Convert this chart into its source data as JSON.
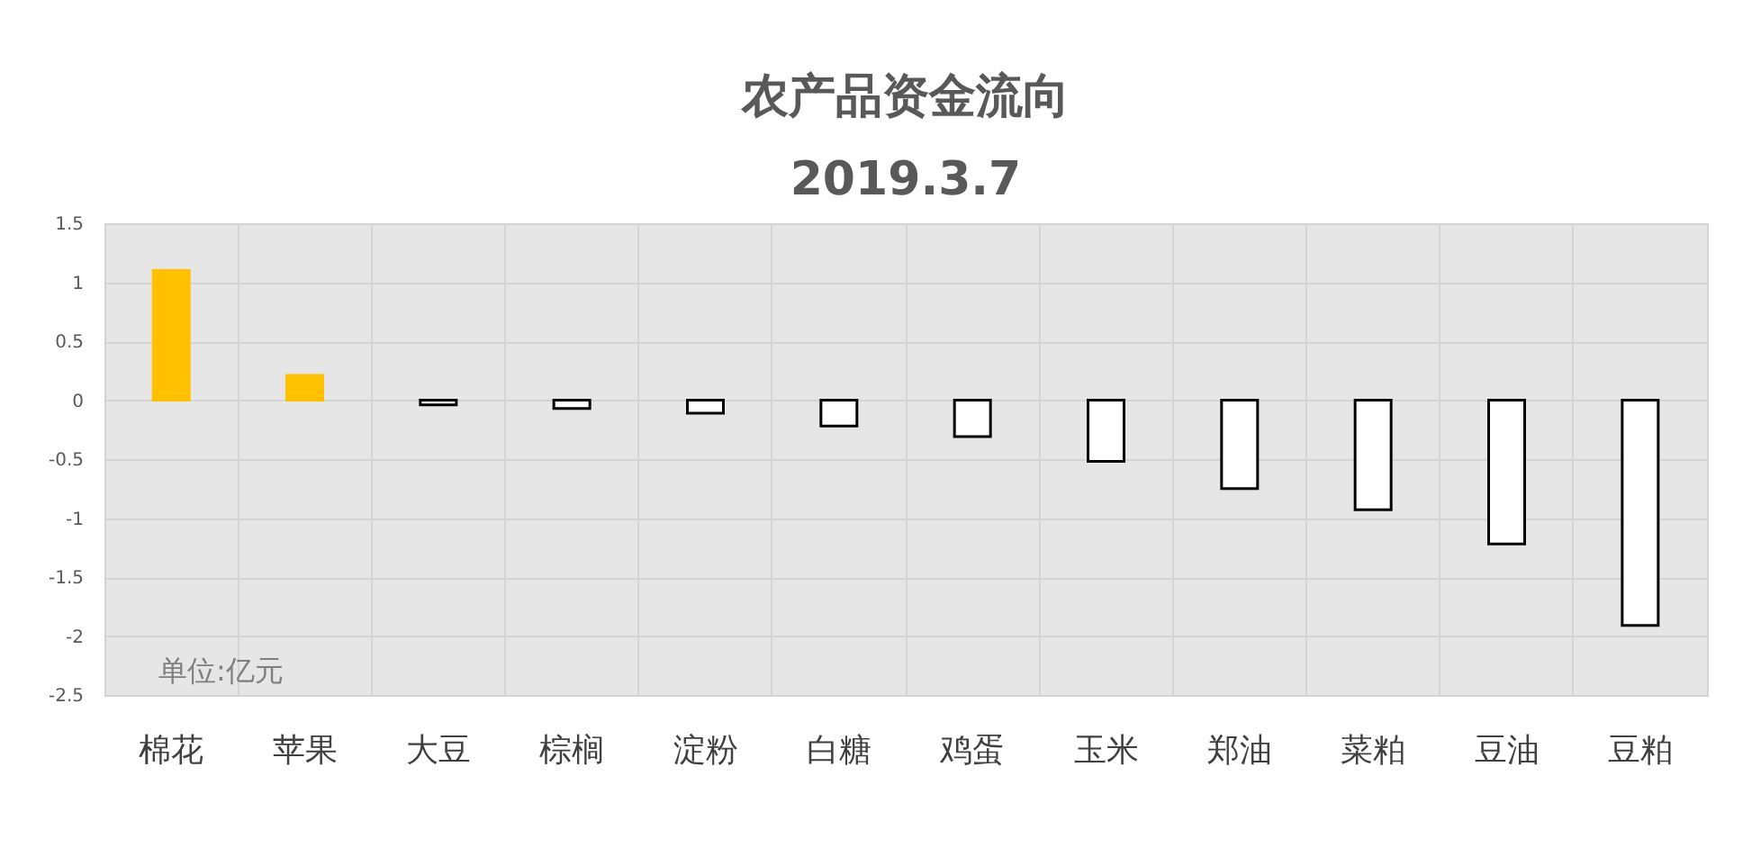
{
  "chart_data": {
    "type": "bar",
    "title": "农产品资金流向",
    "subtitle": "2019.3.7",
    "categories": [
      "棉花",
      "苹果",
      "大豆",
      "棕榈",
      "淀粉",
      "白糖",
      "鸡蛋",
      "玉米",
      "郑油",
      "菜粕",
      "豆油",
      "豆粕"
    ],
    "values": [
      1.1,
      0.21,
      -0.04,
      -0.07,
      -0.11,
      -0.22,
      -0.31,
      -0.52,
      -0.75,
      -0.93,
      -1.22,
      -1.91
    ],
    "colors": [
      "#ffc000",
      "#ffc000",
      "#ffffff",
      "#ffffff",
      "#ffffff",
      "#ffffff",
      "#ffffff",
      "#ffffff",
      "#ffffff",
      "#ffffff",
      "#ffffff",
      "#ffffff"
    ],
    "ylim": [
      -2.5,
      1.5
    ],
    "yticks": [
      1.5,
      1,
      0.5,
      0,
      -0.5,
      -1,
      -1.5,
      -2,
      -2.5
    ],
    "grid": true,
    "annotations": [
      "单位:亿元"
    ]
  }
}
